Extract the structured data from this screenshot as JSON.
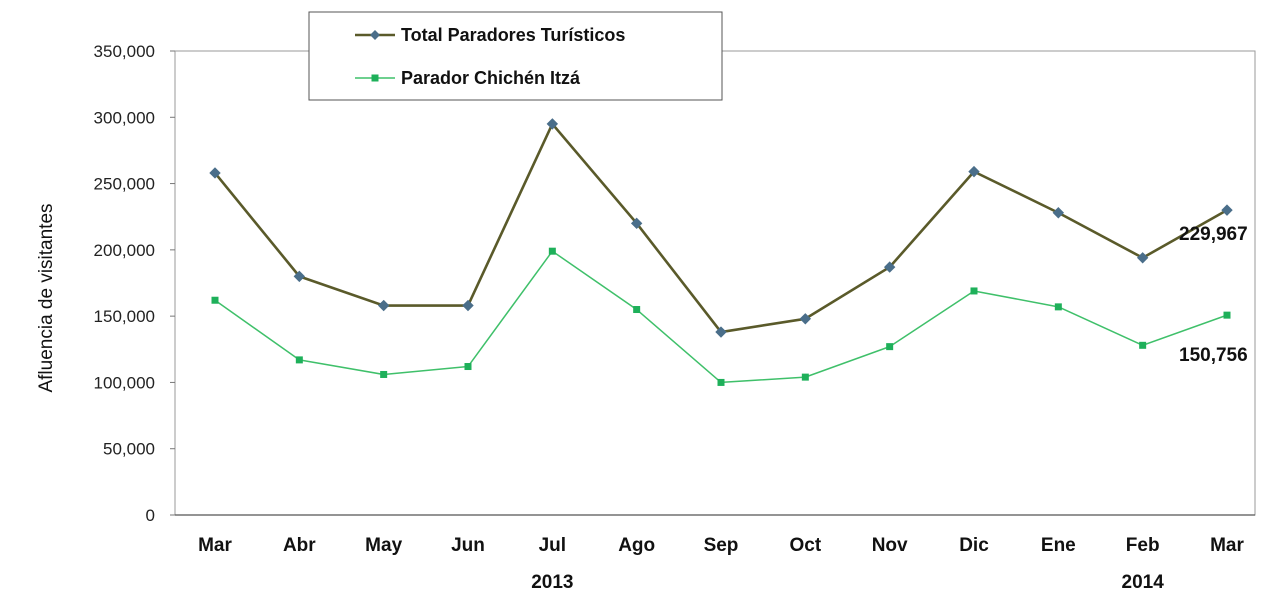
{
  "chart_data": {
    "type": "line",
    "title": "",
    "xlabel": "",
    "ylabel": "Afluencia de visitantes",
    "ylim": [
      0,
      350000
    ],
    "yticks": [
      0,
      50000,
      100000,
      150000,
      200000,
      250000,
      300000,
      350000
    ],
    "ytick_labels": [
      "0",
      "50,000",
      "100,000",
      "150,000",
      "200,000",
      "250,000",
      "300,000",
      "350,000"
    ],
    "categories": [
      "Mar",
      "Abr",
      "May",
      "Jun",
      "Jul",
      "Ago",
      "Sep",
      "Oct",
      "Nov",
      "Dic",
      "Ene",
      "Feb",
      "Mar"
    ],
    "year_labels": [
      {
        "label": "2013",
        "category_index": 4
      },
      {
        "label": "2014",
        "category_index": 11
      }
    ],
    "grid": false,
    "legend_position": "top-left",
    "series": [
      {
        "name": "Total Paradores Turísticos",
        "color": "#5a5a2a",
        "marker_color": "#4a6e8a",
        "marker": "diamond",
        "values": [
          258000,
          180000,
          158000,
          158000,
          295000,
          220000,
          138000,
          148000,
          187000,
          259000,
          228000,
          194000,
          229967
        ]
      },
      {
        "name": "Parador Chichén Itzá",
        "color": "#3fc06a",
        "marker_color": "#1eb05a",
        "marker": "square",
        "values": [
          162000,
          117000,
          106000,
          112000,
          199000,
          155000,
          100000,
          104000,
          127000,
          169000,
          157000,
          128000,
          150756
        ]
      }
    ],
    "annotations": [
      {
        "text": "229,967",
        "series_index": 0,
        "point_index": 12
      },
      {
        "text": "150,756",
        "series_index": 1,
        "point_index": 12
      }
    ]
  }
}
